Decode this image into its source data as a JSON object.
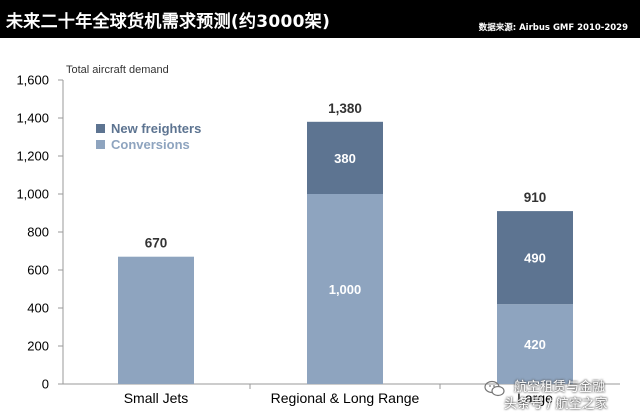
{
  "header": {
    "title": "未来二十年全球货机需求预测(约3000架)",
    "source": "数据来源: Airbus GMF 2010-2029"
  },
  "watermark": {
    "line1": "航空租赁与金融",
    "line2": "头条号 / 航空之家"
  },
  "colors": {
    "conversions": "#8EA4BF",
    "new_freighters": "#5D7491",
    "axis": "#9a9a9a",
    "text": "#000000"
  },
  "chart_data": {
    "type": "bar",
    "stacked": true,
    "ylabel": "Total aircraft demand",
    "categories": [
      "Small Jets",
      "Regional & Long Range",
      "Large"
    ],
    "series": [
      {
        "name": "Conversions",
        "values": [
          670,
          1000,
          420
        ],
        "value_labels": [
          "",
          "1,000",
          "420"
        ]
      },
      {
        "name": "New freighters",
        "values": [
          0,
          380,
          490
        ],
        "value_labels": [
          "",
          "380",
          "490"
        ]
      }
    ],
    "totals": [
      670,
      1380,
      910
    ],
    "total_labels": [
      "670",
      "1,380",
      "910"
    ],
    "ylim": [
      0,
      1600
    ],
    "yticks": [
      0,
      200,
      400,
      600,
      800,
      1000,
      1200,
      1400,
      1600
    ],
    "ytick_labels": [
      "0",
      "200",
      "400",
      "600",
      "800",
      "1,000",
      "1,200",
      "1,400",
      "1,600"
    ],
    "legend": {
      "position": "top-left",
      "items": [
        {
          "label": "New freighters",
          "color_key": "new_freighters"
        },
        {
          "label": "Conversions",
          "color_key": "conversions"
        }
      ]
    },
    "grid": false
  }
}
